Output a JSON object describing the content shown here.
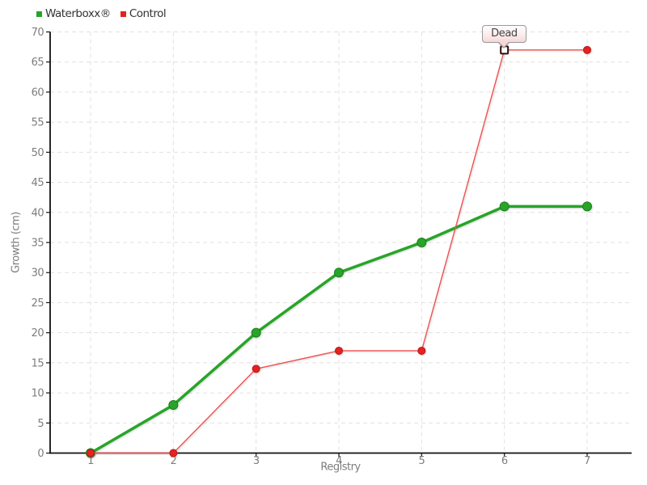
{
  "chart_data": {
    "type": "line",
    "title": "",
    "xlabel": "Registry",
    "ylabel": "Growth (cm)",
    "x": [
      1,
      2,
      3,
      4,
      5,
      6,
      7
    ],
    "xticks": [
      "1",
      "2",
      "3",
      "4",
      "5",
      "6",
      "7"
    ],
    "ylim": [
      0,
      70
    ],
    "ytick_step": 5,
    "grid": true,
    "legend_position": "top-left",
    "series": [
      {
        "name": "Waterboxx®",
        "color": "#28a428",
        "marker": "circle",
        "marker_color": "#28a428",
        "marker_stroke": "#17811c",
        "line_width": 3.5,
        "marker_radius": 5.5,
        "values": [
          0,
          8,
          20,
          30,
          35,
          41,
          41
        ]
      },
      {
        "name": "Control",
        "color": "#f25050",
        "marker": "circle",
        "marker_color": "#e42222",
        "marker_stroke": "#bf1616",
        "line_width": 1.4,
        "marker_radius": 4.5,
        "values": [
          0,
          0,
          14,
          17,
          17,
          67,
          67
        ]
      }
    ],
    "annotations": [
      {
        "text": "Dead",
        "series": "Control",
        "x": 6,
        "y": 67,
        "marker": "open-square",
        "marker_fill": "#ffffff",
        "marker_stroke": "#2d0d0d"
      }
    ]
  },
  "style": {
    "background": "#ffffff",
    "grid_color": "#e1e1e1",
    "axis_color": "#111111",
    "tick_label_color": "#7d7d7d",
    "axis_title_color": "#7d7d7d",
    "legend_text_color": "#333333"
  }
}
